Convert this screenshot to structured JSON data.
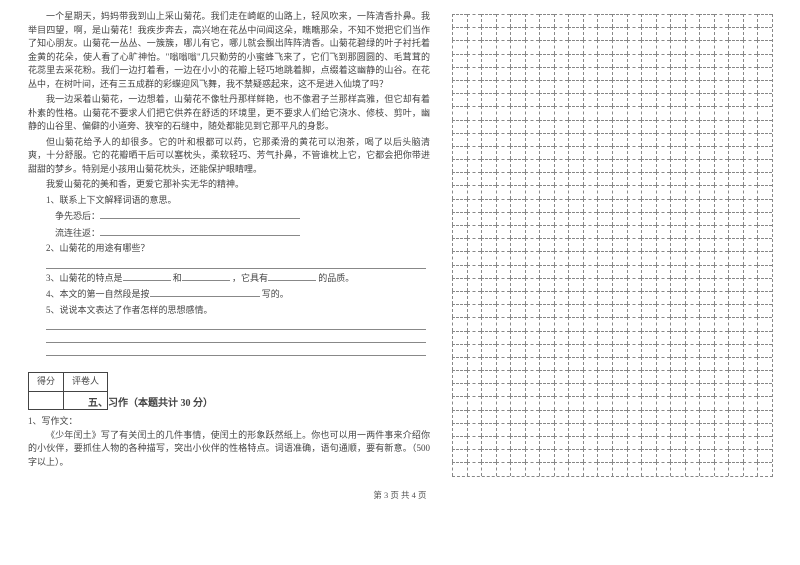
{
  "passage": {
    "p1": "一个星期天，妈妈带我到山上采山菊花。我们走在崎岖的山路上，轻风吹来，一阵清香扑鼻。我举目四望，啊，是山菊花！我疾步奔去，高兴地在花丛中间闻这朵，瞧瞧那朵，不知不觉把它们当作了知心朋友。山菊花一丛丛、一簇簇，哪儿有它，哪儿就会飘出阵阵清香。山菊花碧绿的叶子衬托着金黄的花朵，使人看了心旷神怡。\"嗡嗡嗡\"几只勤劳的小蜜蜂飞来了，它们飞到那圆圆的、毛茸茸的花蕊里去采花粉。我们一边打着看，一边在小小的花瓣上轻巧地跳着脚，点缀着这幽静的山谷。在花丛中，在树叶间，还有三五成群的彩蝶迎风飞舞，我不禁疑惑起来，这不是进入仙境了吗？",
    "p2": "我一边采着山菊花，一边想着，山菊花不像牡丹那样鲜艳，也不像君子兰那样高雅，但它却有着朴素的性格。山菊花不要求人们把它供养在舒适的环境里，更不要求人们给它浇水、修枝、剪叶，幽静的山谷里、偏僻的小道旁、狭窄的石缝中，随处都能见到它那平凡的身影。",
    "p3": "但山菊花给予人的却很多。它的叶和根都可以药，它那柔滑的黄花可以泡茶，喝了以后头脑清爽，十分舒服。它的花瓣晒干后可以塞枕头，柔软轻巧、芳气扑鼻，不管谁枕上它，它都会把你带进甜甜的梦乡。特别是小孩用山菊花枕头，还能保护眼睛哩。",
    "p4": "我爱山菊花的美和香，更爱它那补实无华的精神。"
  },
  "questions": {
    "q1": "1、联系上下文解释词语的意思。",
    "q1a": "争先恐后：",
    "q1b": "流连往返：",
    "q2": "2、山菊花的用途有哪些？",
    "q3_pre": "3、山菊花的特点是",
    "q3_mid": "和",
    "q3_post": "，它具有",
    "q3_end": "的品质。",
    "q4_pre": "4、本文的第一自然段是按",
    "q4_end": "写的。",
    "q5": "5、说说本文表达了作者怎样的思想感情。"
  },
  "scorebox": {
    "col1": "得分",
    "col2": "评卷人"
  },
  "section5": {
    "title": "五、习作（本题共计 30 分）",
    "q1": "1、写作文：",
    "body": "《少年闰土》写了有关闰土的几件事情，使闰土的形象跃然纸上。你也可以用一两件事来介绍你的小伙伴，要抓住人物的各种描写，突出小伙伴的性格特点。词语准确，语句通顺，要有新意。（500字以上）。"
  },
  "grid": {
    "rows": 35,
    "cols": 22
  },
  "footer": "第 3 页 共 4 页"
}
